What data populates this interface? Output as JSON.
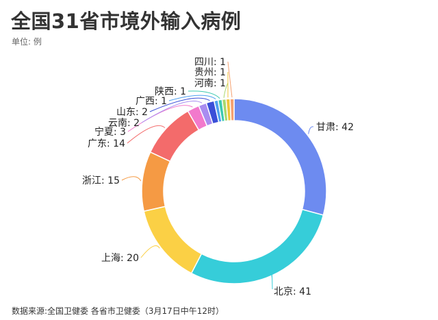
{
  "title": "全国31省市境外输入病例",
  "unit_label": "单位: 例",
  "source": "数据来源:全国卫健委 各省市卫健委（3月17日中午12时）",
  "chart_data": {
    "type": "pie",
    "donut": true,
    "title": "全国31省市境外输入病例",
    "unit": "例",
    "categories": [
      "甘肃",
      "北京",
      "上海",
      "浙江",
      "广东",
      "宁夏",
      "云南",
      "山东",
      "广西",
      "陕西",
      "河南",
      "贵州",
      "四川"
    ],
    "values": [
      42,
      41,
      20,
      15,
      14,
      3,
      2,
      2,
      1,
      1,
      1,
      1,
      1
    ],
    "labels": [
      "甘肃: 42",
      "北京: 41",
      "上海: 20",
      "浙江: 15",
      "广东: 14",
      "宁夏: 3",
      "云南: 2",
      "山东: 2",
      "广西: 1",
      "陕西: 1",
      "河南: 1",
      "贵州: 1",
      "四川: 1"
    ],
    "colors": [
      "#6d8bf0",
      "#36cdd9",
      "#fbd045",
      "#f59a44",
      "#f36b6b",
      "#f279cc",
      "#a98cf0",
      "#3a4fd8",
      "#4ea1f0",
      "#3dc9b0",
      "#a9d86e",
      "#f0c43a",
      "#f5a070"
    ]
  }
}
